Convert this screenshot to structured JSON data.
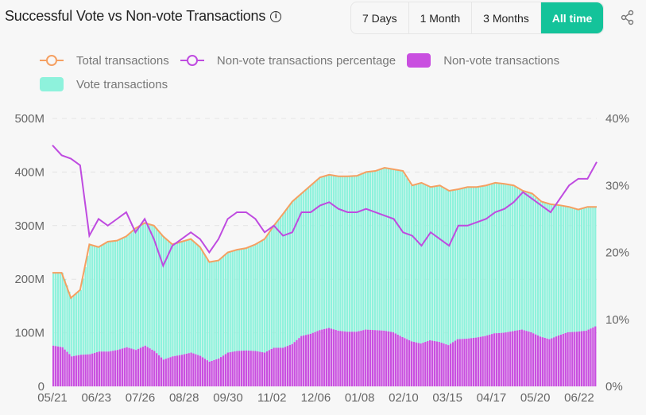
{
  "header": {
    "title": "Successful Vote vs Non-vote Transactions",
    "info_icon": "info-icon",
    "share_icon": "share-icon"
  },
  "range_tabs": [
    {
      "label": "7 Days"
    },
    {
      "label": "1 Month"
    },
    {
      "label": "3 Months"
    },
    {
      "label": "All time",
      "active": true
    }
  ],
  "colors": {
    "accent": "#14c39a",
    "total": "#f5a062",
    "pct": "#bf4be0",
    "nonvote": "#c94fe0",
    "vote": "#8ef2dc"
  },
  "chart_data": {
    "type": "bar+line",
    "legend": [
      {
        "name": "Total transactions",
        "kind": "line",
        "color": "#f5a062"
      },
      {
        "name": "Non-vote transactions percentage",
        "kind": "line",
        "color": "#bf4be0"
      },
      {
        "name": "Non-vote transactions",
        "kind": "bar",
        "color": "#c94fe0"
      },
      {
        "name": "Vote transactions",
        "kind": "bar",
        "color": "#8ef2dc"
      }
    ],
    "legend_placement": "top",
    "x_ticks": [
      "05/21",
      "06/23",
      "07/26",
      "08/28",
      "09/30",
      "11/02",
      "12/06",
      "01/08",
      "02/10",
      "03/15",
      "04/17",
      "05/20",
      "06/22"
    ],
    "y_left": {
      "ticks": [
        "0",
        "100M",
        "200M",
        "300M",
        "400M",
        "500M"
      ],
      "range": [
        0,
        500
      ],
      "unit": "M"
    },
    "y_right": {
      "ticks": [
        "0%",
        "10%",
        "20%",
        "30%",
        "40%"
      ],
      "range": [
        0,
        40
      ]
    },
    "grid": true,
    "sampling": "weekly from 05/21",
    "series": [
      {
        "name": "Total transactions",
        "values": [
          212,
          212,
          165,
          180,
          265,
          260,
          270,
          272,
          280,
          295,
          305,
          300,
          280,
          265,
          270,
          275,
          260,
          232,
          235,
          250,
          255,
          258,
          265,
          275,
          300,
          322,
          345,
          360,
          375,
          390,
          395,
          392,
          392,
          393,
          400,
          402,
          408,
          405,
          402,
          375,
          380,
          372,
          375,
          365,
          368,
          372,
          372,
          375,
          380,
          378,
          375,
          365,
          360,
          345,
          340,
          338,
          335,
          330,
          335,
          335
        ]
      },
      {
        "name": "Non-vote transactions percentage",
        "values": [
          36,
          34.5,
          34,
          33,
          22.5,
          25,
          24,
          25,
          26,
          23,
          25,
          22,
          18,
          21,
          22,
          23,
          22,
          20,
          22,
          25,
          26,
          26,
          25,
          23,
          24,
          22.5,
          23,
          26,
          26,
          27,
          27.5,
          26.5,
          26,
          26,
          26.5,
          26,
          25.5,
          25,
          23,
          22.5,
          21,
          23,
          22,
          21,
          24,
          24,
          24.5,
          25,
          26,
          26.5,
          27.5,
          29,
          28,
          27,
          26,
          28,
          30,
          31,
          31,
          33.5
        ]
      },
      {
        "name": "Non-vote transactions",
        "values": [
          76,
          73,
          56,
          59,
          60,
          65,
          65,
          68,
          73,
          68,
          76,
          66,
          50,
          56,
          59,
          63,
          57,
          46,
          52,
          63,
          66,
          67,
          66,
          63,
          72,
          72,
          79,
          94,
          98,
          105,
          109,
          104,
          102,
          102,
          106,
          105,
          104,
          101,
          92,
          84,
          80,
          86,
          83,
          77,
          88,
          89,
          91,
          94,
          99,
          100,
          103,
          106,
          101,
          93,
          88,
          95,
          101,
          102,
          104,
          112
        ]
      }
    ]
  }
}
